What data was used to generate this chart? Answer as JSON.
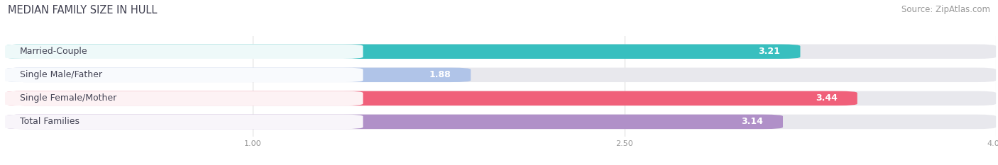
{
  "title": "MEDIAN FAMILY SIZE IN HULL",
  "source": "Source: ZipAtlas.com",
  "categories": [
    "Married-Couple",
    "Single Male/Father",
    "Single Female/Mother",
    "Total Families"
  ],
  "values": [
    3.21,
    1.88,
    3.44,
    3.14
  ],
  "bar_colors": [
    "#38bfbf",
    "#b0c4e8",
    "#f0607a",
    "#b090c8"
  ],
  "bar_bg_color": "#e8e8ed",
  "xlim_start": 0,
  "xlim_end": 4.0,
  "xticks": [
    1.0,
    2.5,
    4.0
  ],
  "bar_height": 0.62,
  "figsize": [
    14.06,
    2.33
  ],
  "dpi": 100,
  "title_fontsize": 10.5,
  "source_fontsize": 8.5,
  "label_fontsize": 9,
  "value_fontsize": 9,
  "bg_color": "#ffffff"
}
